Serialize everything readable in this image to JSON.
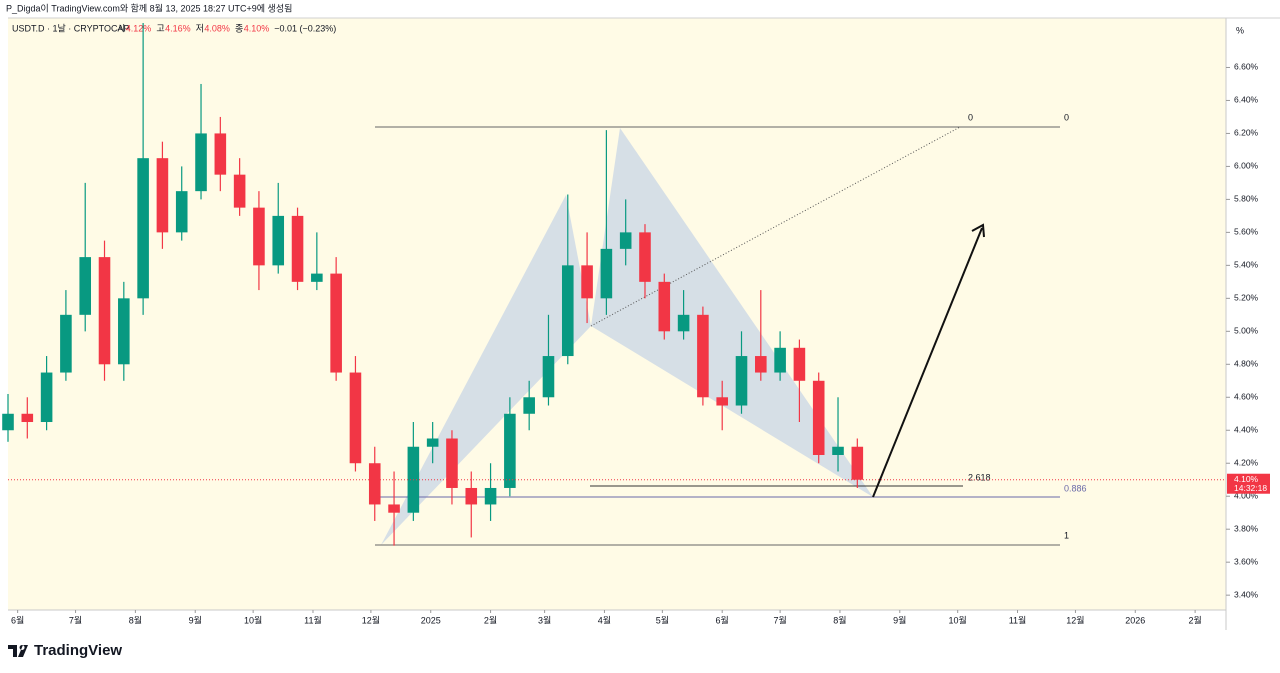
{
  "header": {
    "author": "P_Digda이 TradingView.com와 함께 8월 13, 2025 18:27 UTC+9에 생성됨",
    "symbol": "USDT.D · 1날 · CRYPTOCAP",
    "ohlc": [
      "시",
      "4.12%",
      "고",
      "4.16%",
      "저",
      "4.08%",
      "종",
      "4.10%",
      "−0.01 (−0.23%)"
    ]
  },
  "chart_data": {
    "type": "candlestick",
    "axis_unit": "%",
    "x": [
      -5,
      5,
      15,
      25,
      35,
      45,
      55,
      65,
      75,
      85,
      95,
      105,
      115,
      125,
      135,
      145,
      155,
      165,
      175,
      185,
      195,
      205,
      215,
      225,
      235,
      245,
      255,
      265,
      275,
      285,
      295,
      305,
      315,
      325,
      335,
      345,
      355,
      365,
      375,
      385,
      395,
      405,
      415,
      425,
      435
    ],
    "open": [
      4.4,
      4.5,
      4.45,
      4.75,
      5.1,
      5.45,
      4.8,
      5.2,
      6.05,
      5.6,
      5.85,
      6.2,
      5.95,
      5.75,
      5.4,
      5.7,
      5.3,
      5.35,
      4.75,
      4.2,
      3.95,
      3.9,
      4.3,
      4.35,
      4.05,
      3.95,
      4.05,
      4.5,
      4.6,
      4.85,
      5.4,
      5.2,
      5.5,
      5.6,
      5.3,
      5.0,
      5.1,
      4.6,
      4.55,
      4.85,
      4.75,
      4.9,
      4.7,
      4.25,
      4.3
    ],
    "high": [
      4.62,
      4.6,
      4.85,
      5.25,
      5.9,
      5.55,
      5.3,
      6.87,
      6.15,
      6.0,
      6.5,
      6.3,
      6.05,
      5.85,
      5.9,
      5.75,
      5.6,
      5.45,
      4.85,
      4.3,
      4.15,
      4.45,
      4.45,
      4.4,
      4.15,
      4.2,
      4.6,
      4.7,
      5.1,
      5.83,
      5.6,
      6.22,
      5.8,
      5.65,
      5.35,
      5.25,
      5.15,
      4.7,
      5.0,
      5.25,
      5.0,
      4.95,
      4.75,
      4.6,
      4.35
    ],
    "low": [
      4.33,
      4.35,
      4.4,
      4.7,
      5.0,
      4.7,
      4.7,
      5.1,
      5.5,
      5.55,
      5.8,
      5.85,
      5.7,
      5.25,
      5.35,
      5.25,
      5.25,
      4.7,
      4.15,
      3.85,
      3.7,
      3.85,
      4.2,
      3.95,
      3.75,
      3.85,
      4.0,
      4.4,
      4.55,
      4.8,
      5.05,
      5.1,
      5.4,
      5.2,
      4.95,
      4.95,
      4.55,
      4.4,
      4.5,
      4.7,
      4.7,
      4.45,
      4.2,
      4.15,
      4.05
    ],
    "close": [
      4.5,
      4.45,
      4.75,
      5.1,
      5.45,
      4.8,
      5.2,
      6.05,
      5.6,
      5.85,
      6.2,
      5.95,
      5.75,
      5.4,
      5.7,
      5.3,
      5.35,
      4.75,
      4.2,
      3.95,
      3.9,
      4.3,
      4.35,
      4.05,
      3.95,
      4.05,
      4.5,
      4.6,
      4.85,
      5.4,
      5.2,
      5.5,
      5.6,
      5.3,
      5.0,
      5.1,
      4.6,
      4.55,
      4.85,
      4.75,
      4.9,
      4.7,
      4.25,
      4.3,
      4.1
    ],
    "up_color": "#089981",
    "down_color": "#f23645",
    "ylim": [
      3.31,
      6.9
    ],
    "yticks": [
      {
        "value": 3.4,
        "label": "3.40%"
      },
      {
        "value": 3.6,
        "label": "3.60%"
      },
      {
        "value": 3.8,
        "label": "3.80%"
      },
      {
        "value": 4.0,
        "label": "4.00%"
      },
      {
        "value": 4.2,
        "label": "4.20%"
      },
      {
        "value": 4.4,
        "label": "4.40%"
      },
      {
        "value": 4.6,
        "label": "4.60%"
      },
      {
        "value": 4.8,
        "label": "4.80%"
      },
      {
        "value": 5.0,
        "label": "5.00%"
      },
      {
        "value": 5.2,
        "label": "5.20%"
      },
      {
        "value": 5.4,
        "label": "5.40%"
      },
      {
        "value": 5.6,
        "label": "5.60%"
      },
      {
        "value": 5.8,
        "label": "5.80%"
      },
      {
        "value": 6.0,
        "label": "6.00%"
      },
      {
        "value": 6.2,
        "label": "6.20%"
      },
      {
        "value": 6.4,
        "label": "6.40%"
      },
      {
        "value": 6.6,
        "label": "6.60%"
      }
    ],
    "xlim": [
      -5,
      626
    ],
    "xticks": [
      {
        "value": 0,
        "label": "6월"
      },
      {
        "value": 30,
        "label": "7월"
      },
      {
        "value": 61,
        "label": "8월"
      },
      {
        "value": 92,
        "label": "9월"
      },
      {
        "value": 122,
        "label": "10월"
      },
      {
        "value": 153,
        "label": "11월"
      },
      {
        "value": 183,
        "label": "12월"
      },
      {
        "value": 214,
        "label": "2025"
      },
      {
        "value": 245,
        "label": "2월"
      },
      {
        "value": 273,
        "label": "3월"
      },
      {
        "value": 304,
        "label": "4월"
      },
      {
        "value": 334,
        "label": "5월"
      },
      {
        "value": 365,
        "label": "6월"
      },
      {
        "value": 395,
        "label": "7월"
      },
      {
        "value": 426,
        "label": "8월"
      },
      {
        "value": 457,
        "label": "9월"
      },
      {
        "value": 487,
        "label": "10월"
      },
      {
        "value": 518,
        "label": "11월"
      },
      {
        "value": 548,
        "label": "12월"
      },
      {
        "value": 579,
        "label": "2026"
      },
      {
        "value": 610,
        "label": "2월"
      }
    ],
    "last_price": {
      "value": 4.1,
      "label": "4.10%"
    },
    "countdown": "14:32:18",
    "annotations": [
      "0",
      "0",
      "2.618",
      "0.886",
      "1"
    ]
  },
  "footer": {
    "brand": "TradingView"
  }
}
